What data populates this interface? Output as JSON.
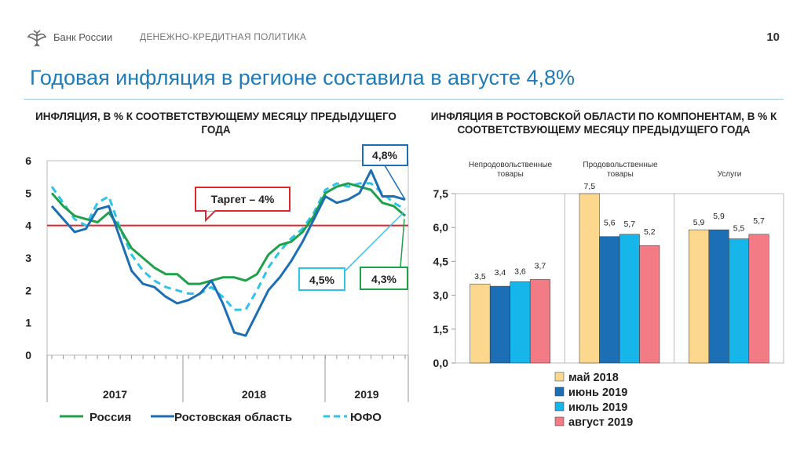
{
  "header": {
    "logo_text": "Банк России",
    "section": "ДЕНЕЖНО-КРЕДИТНАЯ ПОЛИТИКА",
    "page_number": "10"
  },
  "title": "Годовая инфляция в регионе составила в августе 4,8%",
  "colors": {
    "title": "#1f7bb6",
    "russia": "#1fa04a",
    "rostov": "#1c6fb5",
    "yufo": "#2ec4ea",
    "target": "#e0262a",
    "may2018": "#fcd88e",
    "jun2019": "#1c6fb5",
    "jul2019": "#16b6ea",
    "aug2019": "#f37b86"
  },
  "chart_data": [
    {
      "type": "line",
      "title": "ИНФЛЯЦИЯ, В % К СООТВЕТСТВУЮЩЕМУ МЕСЯЦУ ПРЕДЫДУЩЕГО ГОДА",
      "ylim": [
        0,
        6
      ],
      "yticks": [
        "0",
        "1",
        "2",
        "3",
        "4",
        "5",
        "6"
      ],
      "year_labels": [
        "2017",
        "2018",
        "2019"
      ],
      "target": {
        "value": 4,
        "label": "Таргет – 4%"
      },
      "series": [
        {
          "name": "Россия",
          "values": [
            5.0,
            4.6,
            4.3,
            4.2,
            4.1,
            4.4,
            3.9,
            3.3,
            3.0,
            2.7,
            2.5,
            2.5,
            2.2,
            2.2,
            2.3,
            2.4,
            2.4,
            2.3,
            2.5,
            3.1,
            3.4,
            3.5,
            3.8,
            4.3,
            5.0,
            5.2,
            5.3,
            5.2,
            5.1,
            4.7,
            4.6,
            4.3
          ]
        },
        {
          "name": "Ростовская область",
          "values": [
            4.6,
            4.2,
            3.8,
            3.9,
            4.5,
            4.6,
            3.6,
            2.6,
            2.2,
            2.1,
            1.8,
            1.6,
            1.7,
            1.9,
            2.3,
            1.6,
            0.7,
            0.6,
            1.3,
            2.0,
            2.4,
            2.9,
            3.5,
            4.2,
            4.9,
            4.7,
            4.8,
            5.0,
            5.7,
            4.9,
            4.9,
            4.8
          ]
        },
        {
          "name": "ЮФО",
          "values": [
            5.2,
            4.7,
            4.2,
            4.0,
            4.7,
            4.9,
            3.9,
            3.1,
            2.6,
            2.3,
            2.1,
            2.0,
            1.9,
            1.9,
            2.1,
            1.8,
            1.4,
            1.4,
            2.0,
            2.7,
            3.2,
            3.6,
            3.9,
            4.4,
            5.1,
            5.3,
            5.2,
            5.3,
            5.3,
            5.0,
            4.7,
            4.5
          ]
        }
      ],
      "callouts": [
        "4,8%",
        "4,5%",
        "4,3%"
      ]
    },
    {
      "type": "bar",
      "title": "ИНФЛЯЦИЯ В РОСТОВСКОЙ ОБЛАСТИ ПО КОМПОНЕНТАМ, В % К СООТВЕТСТВУЮЩЕМУ  МЕСЯЦУ ПРЕДЫДУЩЕГО ГОДА",
      "categories": [
        "Непродовольственные товары",
        "Продовольственные товары",
        "Услуги"
      ],
      "ylim": [
        0,
        7.5
      ],
      "yticks": [
        "0,0",
        "1,5",
        "3,0",
        "4,5",
        "6,0",
        "7,5"
      ],
      "series": [
        {
          "name": "май 2018",
          "values": [
            3.5,
            7.5,
            5.9
          ],
          "labels": [
            "3,5",
            "7,5",
            "5,9"
          ]
        },
        {
          "name": "июнь 2019",
          "values": [
            3.4,
            5.6,
            5.9
          ],
          "labels": [
            "3,4",
            "5,6",
            "5,9"
          ]
        },
        {
          "name": "июль 2019",
          "values": [
            3.6,
            5.7,
            5.5
          ],
          "labels": [
            "3,6",
            "5,7",
            "5,5"
          ]
        },
        {
          "name": "август 2019",
          "values": [
            3.7,
            5.2,
            5.7
          ],
          "labels": [
            "3,7",
            "5,2",
            "5,7"
          ]
        }
      ]
    }
  ]
}
